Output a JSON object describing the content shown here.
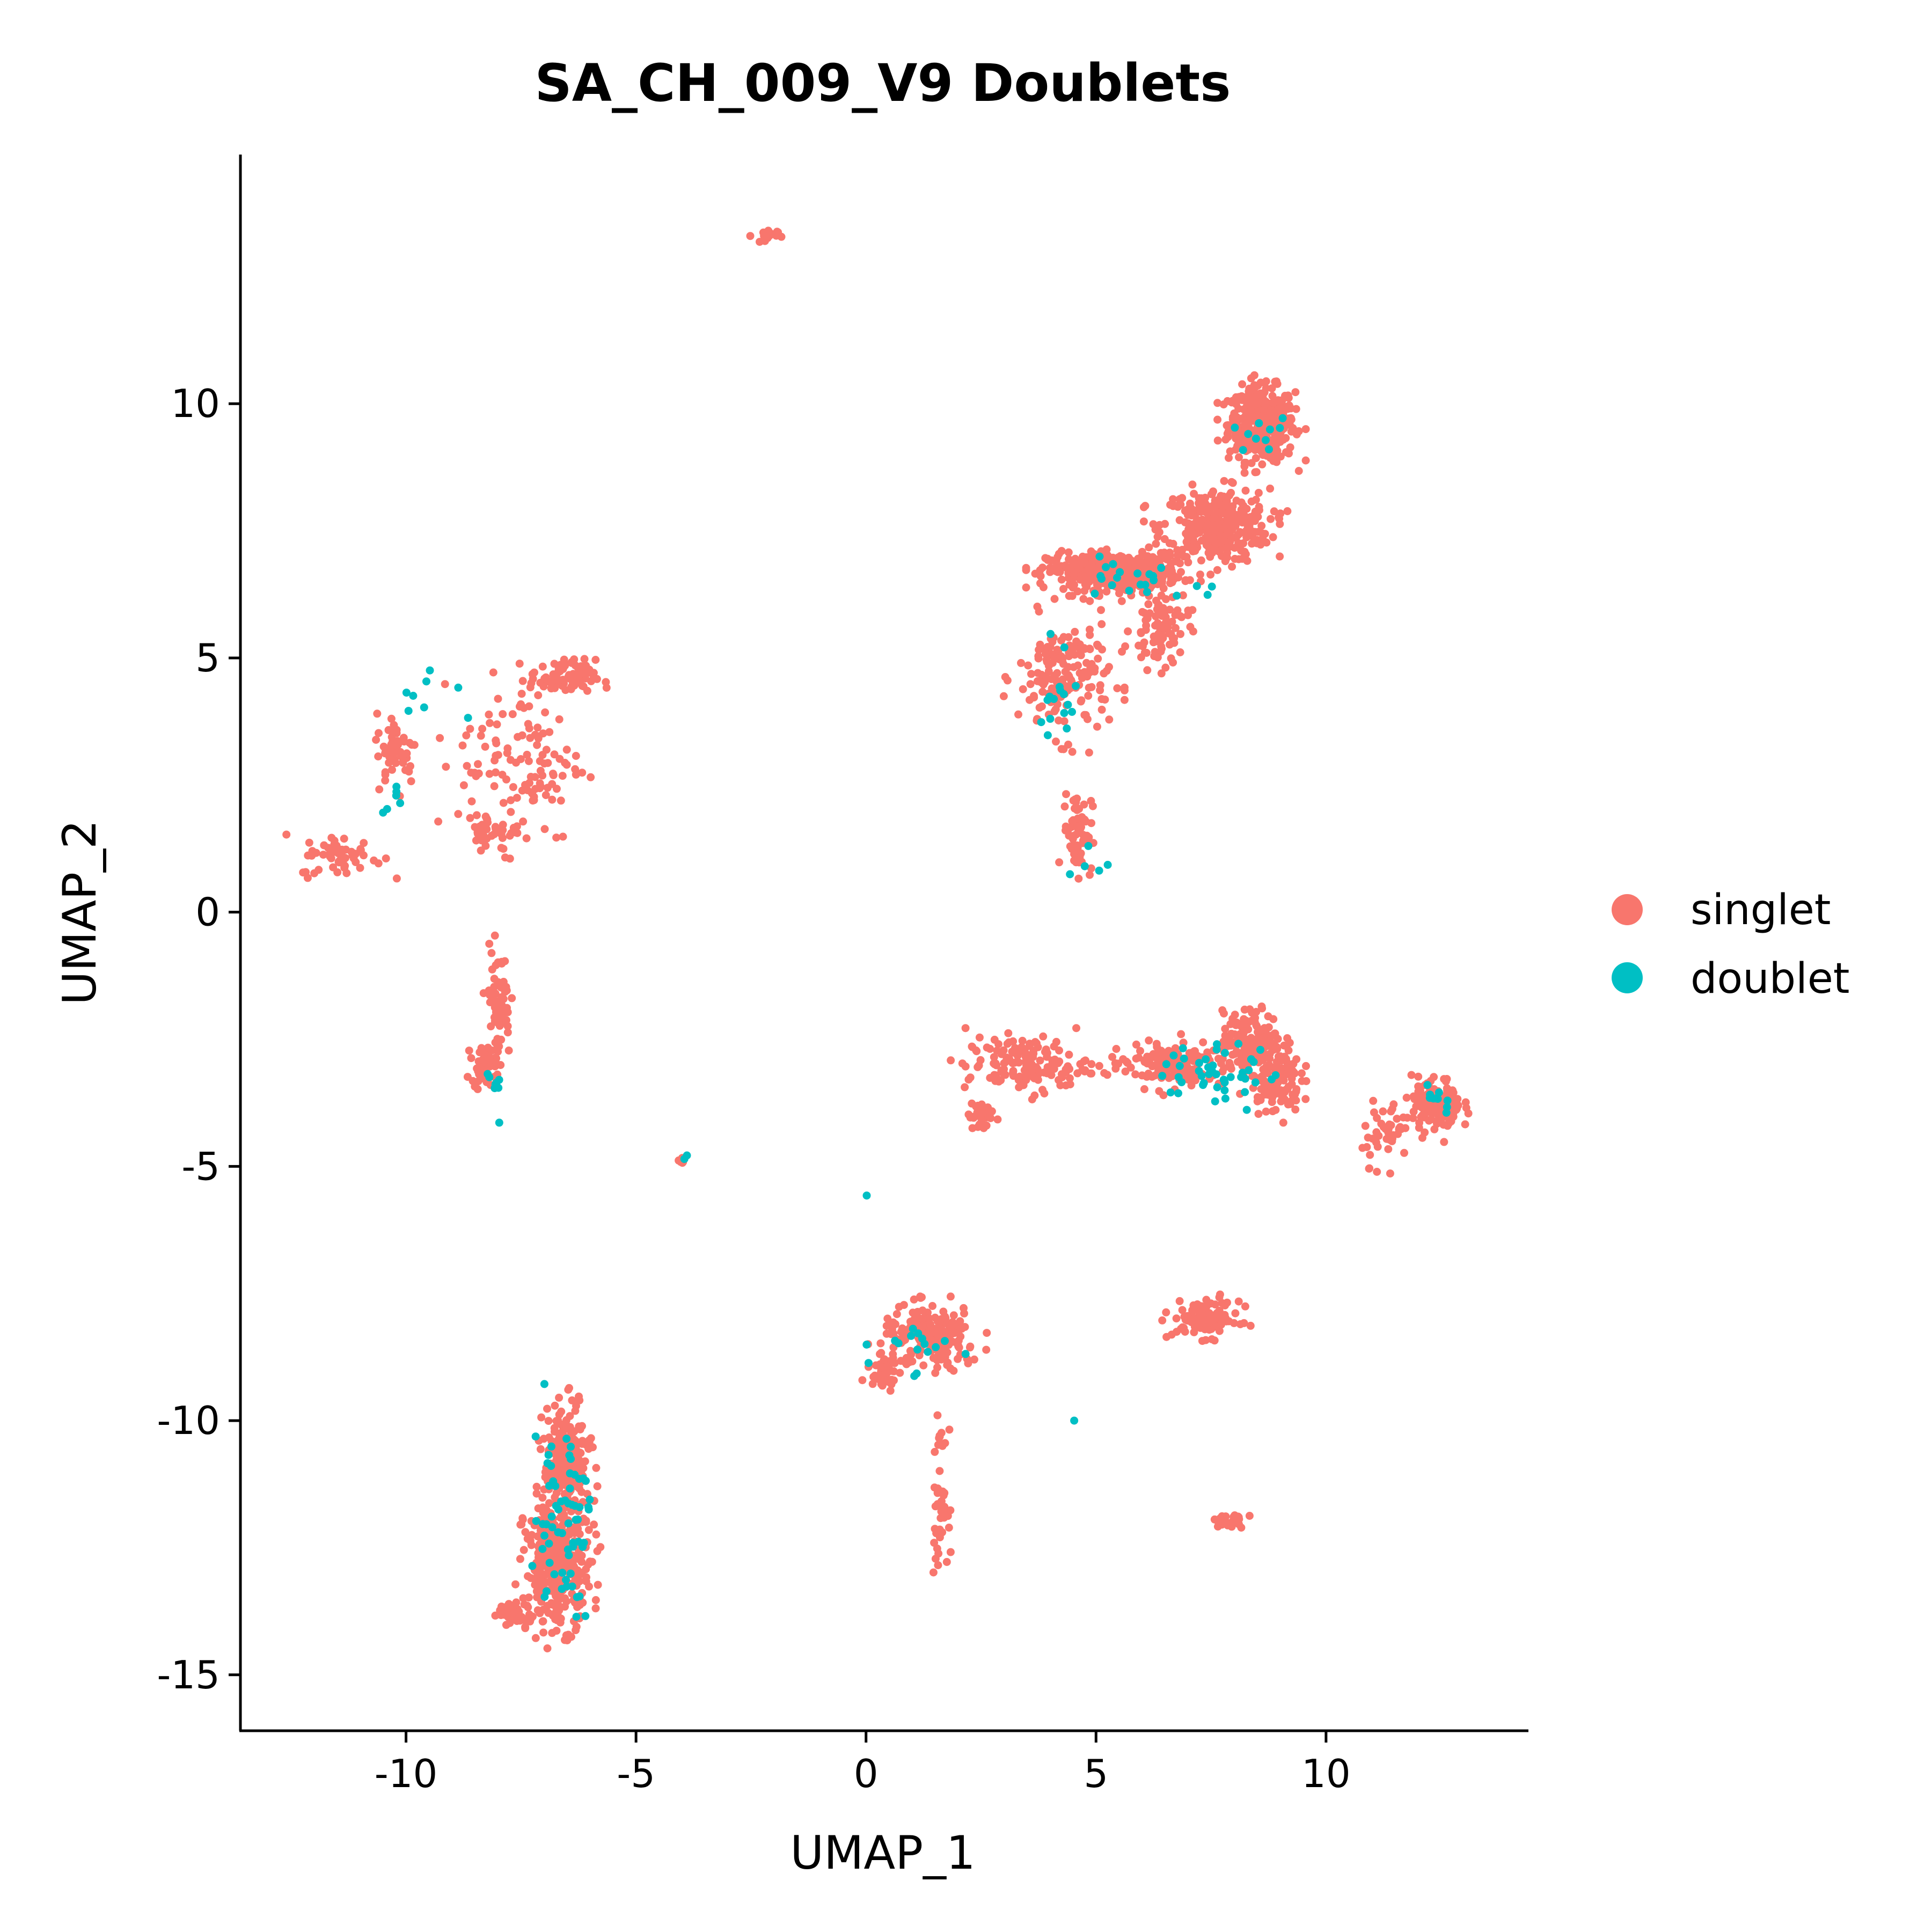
{
  "chart_data": {
    "type": "scatter",
    "title": "SA_CH_009_V9 Doublets",
    "xlabel": "UMAP_1",
    "ylabel": "UMAP_2",
    "xlim": [
      -13.6,
      14.4
    ],
    "ylim": [
      -16.1,
      14.9
    ],
    "x_ticks": [
      -10,
      -5,
      0,
      5,
      10
    ],
    "y_ticks": [
      -15,
      -10,
      -5,
      0,
      5,
      10
    ],
    "x_tick_labels": [
      "-10",
      "-5",
      "0",
      "5",
      "10"
    ],
    "y_tick_labels": [
      "-15",
      "-10",
      "-5",
      "0",
      "5",
      "10"
    ],
    "grid": false,
    "legend_position": "right",
    "series": [
      {
        "name": "singlet",
        "color": "#F8766D",
        "clusters": [
          {
            "cx": 8.6,
            "cy": 9.6,
            "rx": 0.8,
            "ry": 0.8,
            "n": 420
          },
          {
            "cx": 7.6,
            "cy": 7.6,
            "rx": 1.3,
            "ry": 0.8,
            "n": 360
          },
          {
            "cx": 5.4,
            "cy": 6.7,
            "rx": 1.6,
            "ry": 0.4,
            "n": 380
          },
          {
            "cx": 4.3,
            "cy": 4.6,
            "rx": 1.1,
            "ry": 1.3,
            "n": 170
          },
          {
            "cx": 6.4,
            "cy": 5.6,
            "rx": 0.7,
            "ry": 0.9,
            "n": 90
          },
          {
            "cx": 4.6,
            "cy": 1.6,
            "rx": 0.35,
            "ry": 0.9,
            "n": 70
          },
          {
            "cx": -2.2,
            "cy": 13.3,
            "rx": 0.3,
            "ry": 0.15,
            "n": 18
          },
          {
            "cx": -6.6,
            "cy": 4.6,
            "rx": 0.8,
            "ry": 0.4,
            "n": 90
          },
          {
            "cx": -7.5,
            "cy": 3.0,
            "rx": 1.5,
            "ry": 1.8,
            "n": 120
          },
          {
            "cx": -10.2,
            "cy": 3.2,
            "rx": 0.5,
            "ry": 0.8,
            "n": 50
          },
          {
            "cx": -11.4,
            "cy": 1.1,
            "rx": 1.0,
            "ry": 0.45,
            "n": 55
          },
          {
            "cx": -8.1,
            "cy": 1.6,
            "rx": 0.6,
            "ry": 0.4,
            "n": 40
          },
          {
            "cx": -8.0,
            "cy": -1.8,
            "rx": 0.3,
            "ry": 1.2,
            "n": 70
          },
          {
            "cx": -8.3,
            "cy": -3.0,
            "rx": 0.3,
            "ry": 0.4,
            "n": 60
          },
          {
            "cx": 3.5,
            "cy": -3.0,
            "rx": 1.5,
            "ry": 0.6,
            "n": 150
          },
          {
            "cx": 2.5,
            "cy": -4.0,
            "rx": 0.3,
            "ry": 0.4,
            "n": 35
          },
          {
            "cx": 6.6,
            "cy": -3.0,
            "rx": 1.5,
            "ry": 0.5,
            "n": 150
          },
          {
            "cx": 8.4,
            "cy": -2.5,
            "rx": 0.7,
            "ry": 0.6,
            "n": 170
          },
          {
            "cx": 8.9,
            "cy": -3.3,
            "rx": 0.6,
            "ry": 0.7,
            "n": 110
          },
          {
            "cx": 12.4,
            "cy": -3.8,
            "rx": 0.6,
            "ry": 0.6,
            "n": 140
          },
          {
            "cx": 11.3,
            "cy": -4.3,
            "rx": 0.6,
            "ry": 0.7,
            "n": 45
          },
          {
            "cx": 1.4,
            "cy": -8.4,
            "rx": 1.2,
            "ry": 0.7,
            "n": 190
          },
          {
            "cx": 0.4,
            "cy": -9.0,
            "rx": 0.4,
            "ry": 0.4,
            "n": 40
          },
          {
            "cx": 1.6,
            "cy": -11.5,
            "rx": 0.2,
            "ry": 1.4,
            "n": 45
          },
          {
            "cx": 7.4,
            "cy": -8.0,
            "rx": 0.8,
            "ry": 0.4,
            "n": 110
          },
          {
            "cx": 7.9,
            "cy": -12.0,
            "rx": 0.55,
            "ry": 0.2,
            "n": 22
          },
          {
            "cx": -6.5,
            "cy": -10.8,
            "rx": 0.55,
            "ry": 1.2,
            "n": 230
          },
          {
            "cx": -6.7,
            "cy": -12.8,
            "rx": 0.8,
            "ry": 1.4,
            "n": 330
          },
          {
            "cx": -7.6,
            "cy": -13.8,
            "rx": 0.6,
            "ry": 0.25,
            "n": 40
          },
          {
            "cx": -4.0,
            "cy": -4.9,
            "rx": 0.12,
            "ry": 0.08,
            "n": 6
          }
        ]
      },
      {
        "name": "doublet",
        "color": "#00BFC4",
        "clusters": [
          {
            "cx": 8.6,
            "cy": 9.5,
            "rx": 0.6,
            "ry": 0.6,
            "n": 10
          },
          {
            "cx": 6.0,
            "cy": 6.6,
            "rx": 1.5,
            "ry": 0.5,
            "n": 22
          },
          {
            "cx": 4.2,
            "cy": 4.3,
            "rx": 0.5,
            "ry": 1.1,
            "n": 16
          },
          {
            "cx": 4.8,
            "cy": 0.8,
            "rx": 0.5,
            "ry": 0.8,
            "n": 5
          },
          {
            "cx": -9.5,
            "cy": 4.3,
            "rx": 1.0,
            "ry": 0.8,
            "n": 8
          },
          {
            "cx": -10.3,
            "cy": 2.2,
            "rx": 0.4,
            "ry": 0.6,
            "n": 6
          },
          {
            "cx": -8.0,
            "cy": -3.3,
            "rx": 0.3,
            "ry": 0.7,
            "n": 8
          },
          {
            "cx": 7.6,
            "cy": -3.2,
            "rx": 1.4,
            "ry": 0.7,
            "n": 45
          },
          {
            "cx": 12.4,
            "cy": -3.6,
            "rx": 0.4,
            "ry": 0.4,
            "n": 10
          },
          {
            "cx": 1.1,
            "cy": -8.6,
            "rx": 1.0,
            "ry": 0.7,
            "n": 16
          },
          {
            "cx": -6.6,
            "cy": -11.8,
            "rx": 0.7,
            "ry": 2.1,
            "n": 65
          },
          {
            "cx": -3.9,
            "cy": -4.8,
            "rx": 0.1,
            "ry": 0.1,
            "n": 2
          },
          {
            "cx": 0.0,
            "cy": -5.6,
            "rx": 0.05,
            "ry": 0.05,
            "n": 1
          },
          {
            "cx": 4.5,
            "cy": -10.0,
            "rx": 0.05,
            "ry": 0.05,
            "n": 1
          }
        ]
      }
    ]
  }
}
